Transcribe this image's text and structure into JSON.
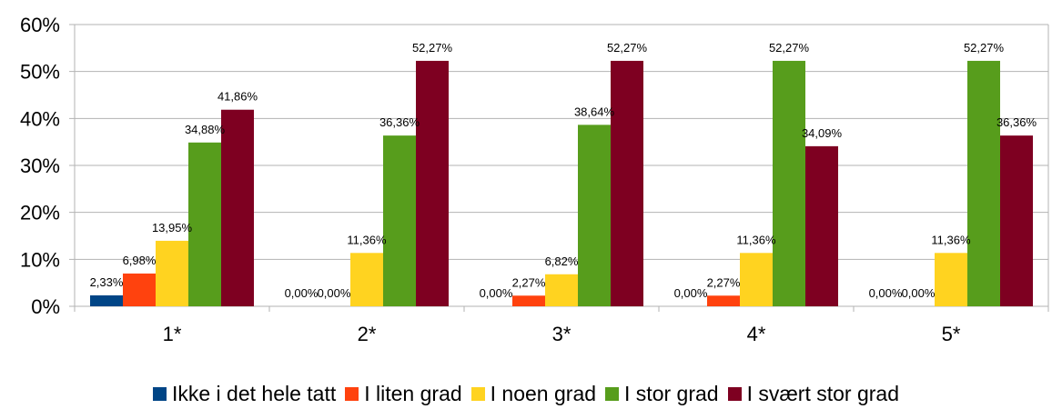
{
  "chart_data": {
    "type": "bar",
    "categories": [
      "1*",
      "2*",
      "3*",
      "4*",
      "5*"
    ],
    "ylim": [
      0,
      60
    ],
    "y_ticks": [
      "0%",
      "10%",
      "20%",
      "30%",
      "40%",
      "50%",
      "60%"
    ],
    "grid": "horizontal",
    "legend_position": "bottom",
    "series": [
      {
        "name": "Ikke i det hele tatt",
        "color": "#004586",
        "values": [
          2.33,
          0.0,
          0.0,
          0.0,
          0.0
        ],
        "labels": [
          "2,33%",
          "0,00%",
          "0,00%",
          "0,00%",
          "0,00%"
        ]
      },
      {
        "name": "I liten grad",
        "color": "#ff420e",
        "values": [
          6.98,
          0.0,
          2.27,
          2.27,
          0.0
        ],
        "labels": [
          "6,98%",
          "0,00%",
          "2,27%",
          "2,27%",
          "0,00%"
        ]
      },
      {
        "name": "I noen grad",
        "color": "#ffd320",
        "values": [
          13.95,
          11.36,
          6.82,
          11.36,
          11.36
        ],
        "labels": [
          "13,95%",
          "11,36%",
          "6,82%",
          "11,36%",
          "11,36%"
        ]
      },
      {
        "name": "I stor grad",
        "color": "#579d1c",
        "values": [
          34.88,
          36.36,
          38.64,
          52.27,
          52.27
        ],
        "labels": [
          "34,88%",
          "36,36%",
          "38,64%",
          "52,27%",
          "52,27%"
        ]
      },
      {
        "name": "I svært stor grad",
        "color": "#7e0021",
        "values": [
          41.86,
          52.27,
          52.27,
          34.09,
          36.36
        ],
        "labels": [
          "41,86%",
          "52,27%",
          "52,27%",
          "34,09%",
          "36,36%"
        ]
      }
    ]
  }
}
